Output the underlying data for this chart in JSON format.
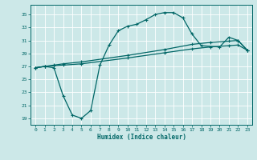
{
  "title": "",
  "xlabel": "Humidex (Indice chaleur)",
  "bg_color": "#cce8e8",
  "grid_color": "#ffffff",
  "line_color": "#006666",
  "xlim": [
    -0.5,
    23.5
  ],
  "ylim": [
    18,
    36.5
  ],
  "yticks": [
    19,
    21,
    23,
    25,
    27,
    29,
    31,
    33,
    35
  ],
  "xticks": [
    0,
    1,
    2,
    3,
    4,
    5,
    6,
    7,
    8,
    9,
    10,
    11,
    12,
    13,
    14,
    15,
    16,
    17,
    18,
    19,
    20,
    21,
    22,
    23
  ],
  "line1_x": [
    0,
    1,
    2,
    3,
    4,
    5,
    6,
    7,
    8,
    9,
    10,
    11,
    12,
    13,
    14,
    15,
    16,
    17,
    18,
    20,
    21,
    22,
    23
  ],
  "line1_y": [
    26.8,
    27.0,
    26.8,
    22.5,
    19.5,
    19.0,
    20.2,
    27.2,
    30.3,
    32.5,
    33.2,
    33.5,
    34.2,
    35.0,
    35.3,
    35.3,
    34.5,
    32.0,
    30.2,
    30.0,
    31.5,
    31.0,
    29.5
  ],
  "line2_x": [
    0,
    1,
    2,
    3,
    5,
    10,
    14,
    17,
    19,
    21,
    22,
    23
  ],
  "line2_y": [
    26.8,
    27.0,
    27.1,
    27.2,
    27.4,
    28.3,
    29.1,
    29.7,
    30.0,
    30.2,
    30.3,
    29.5
  ],
  "line3_x": [
    0,
    1,
    2,
    3,
    5,
    10,
    14,
    17,
    19,
    21,
    22,
    23
  ],
  "line3_y": [
    26.8,
    27.0,
    27.2,
    27.4,
    27.7,
    28.7,
    29.6,
    30.4,
    30.7,
    30.9,
    31.0,
    29.5
  ]
}
